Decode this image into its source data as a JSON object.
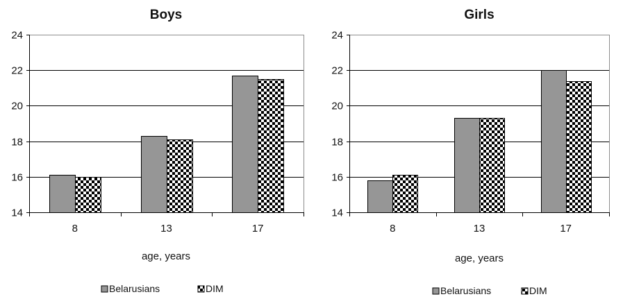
{
  "chart_data": [
    {
      "type": "bar",
      "title": "Boys",
      "xlabel": "age, years",
      "ylabel": "",
      "ylim": [
        14,
        24
      ],
      "yticks": [
        14,
        16,
        18,
        20,
        22,
        24
      ],
      "grid": true,
      "legend_position": "bottom",
      "categories": [
        "8",
        "13",
        "17"
      ],
      "series": [
        {
          "name": "Belarusians",
          "values": [
            16.1,
            18.3,
            21.7
          ],
          "color": "#969696",
          "pattern": "solid"
        },
        {
          "name": "DIM",
          "values": [
            16.0,
            18.1,
            21.5
          ],
          "color": "#000000",
          "pattern": "checkerboard"
        }
      ]
    },
    {
      "type": "bar",
      "title": "Girls",
      "xlabel": "age, years",
      "ylabel": "",
      "ylim": [
        14,
        24
      ],
      "yticks": [
        14,
        16,
        18,
        20,
        22,
        24
      ],
      "grid": true,
      "legend_position": "bottom",
      "categories": [
        "8",
        "13",
        "17"
      ],
      "series": [
        {
          "name": "Belarusians",
          "values": [
            15.8,
            19.3,
            22.0
          ],
          "color": "#969696",
          "pattern": "solid"
        },
        {
          "name": "DIM",
          "values": [
            16.1,
            19.3,
            21.4
          ],
          "color": "#000000",
          "pattern": "checkerboard"
        }
      ]
    }
  ]
}
